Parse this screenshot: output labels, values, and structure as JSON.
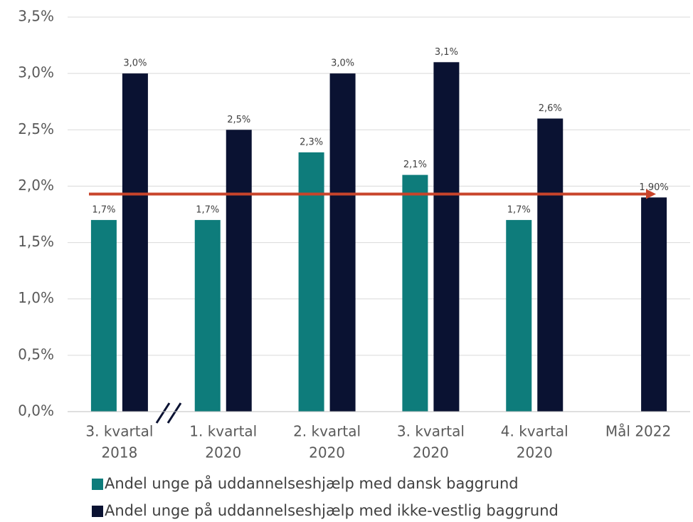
{
  "chart_data": {
    "type": "bar",
    "categories": [
      [
        "3. kvartal",
        "2018"
      ],
      [
        "1. kvartal",
        "2020"
      ],
      [
        "2. kvartal",
        "2020"
      ],
      [
        "3. kvartal",
        "2020"
      ],
      [
        "4. kvartal",
        "2020"
      ],
      [
        "Mål 2022"
      ]
    ],
    "series": [
      {
        "name": "Andel unge på uddannelseshjælp med dansk baggrund",
        "color": "#0e7c7b",
        "values": [
          1.7,
          1.7,
          2.3,
          2.1,
          1.7,
          null
        ],
        "value_labels": [
          "1,7%",
          "1,7%",
          "2,3%",
          "2,1%",
          "1,7%",
          null
        ]
      },
      {
        "name": "Andel unge på uddannelseshjælp med ikke-vestlig baggrund",
        "color": "#0a1232",
        "values": [
          3.0,
          2.5,
          3.0,
          3.1,
          2.6,
          1.9
        ],
        "value_labels": [
          "3,0%",
          "2,5%",
          "3,0%",
          "3,1%",
          "2,6%",
          "1,90%"
        ]
      }
    ],
    "ylim": [
      0,
      3.5
    ],
    "yticks": [
      {
        "value": 0,
        "label": "0,0%"
      },
      {
        "value": 0.5,
        "label": "0,5%"
      },
      {
        "value": 1,
        "label": "1,0%"
      },
      {
        "value": 1.5,
        "label": "1,5%"
      },
      {
        "value": 2,
        "label": "2,0%"
      },
      {
        "value": 2.5,
        "label": "2,5%"
      },
      {
        "value": 3,
        "label": "3,0%"
      },
      {
        "value": 3.5,
        "label": "3,5%"
      }
    ],
    "grid": true,
    "target_arrow": {
      "value": 1.93,
      "color": "#c8442b"
    }
  }
}
